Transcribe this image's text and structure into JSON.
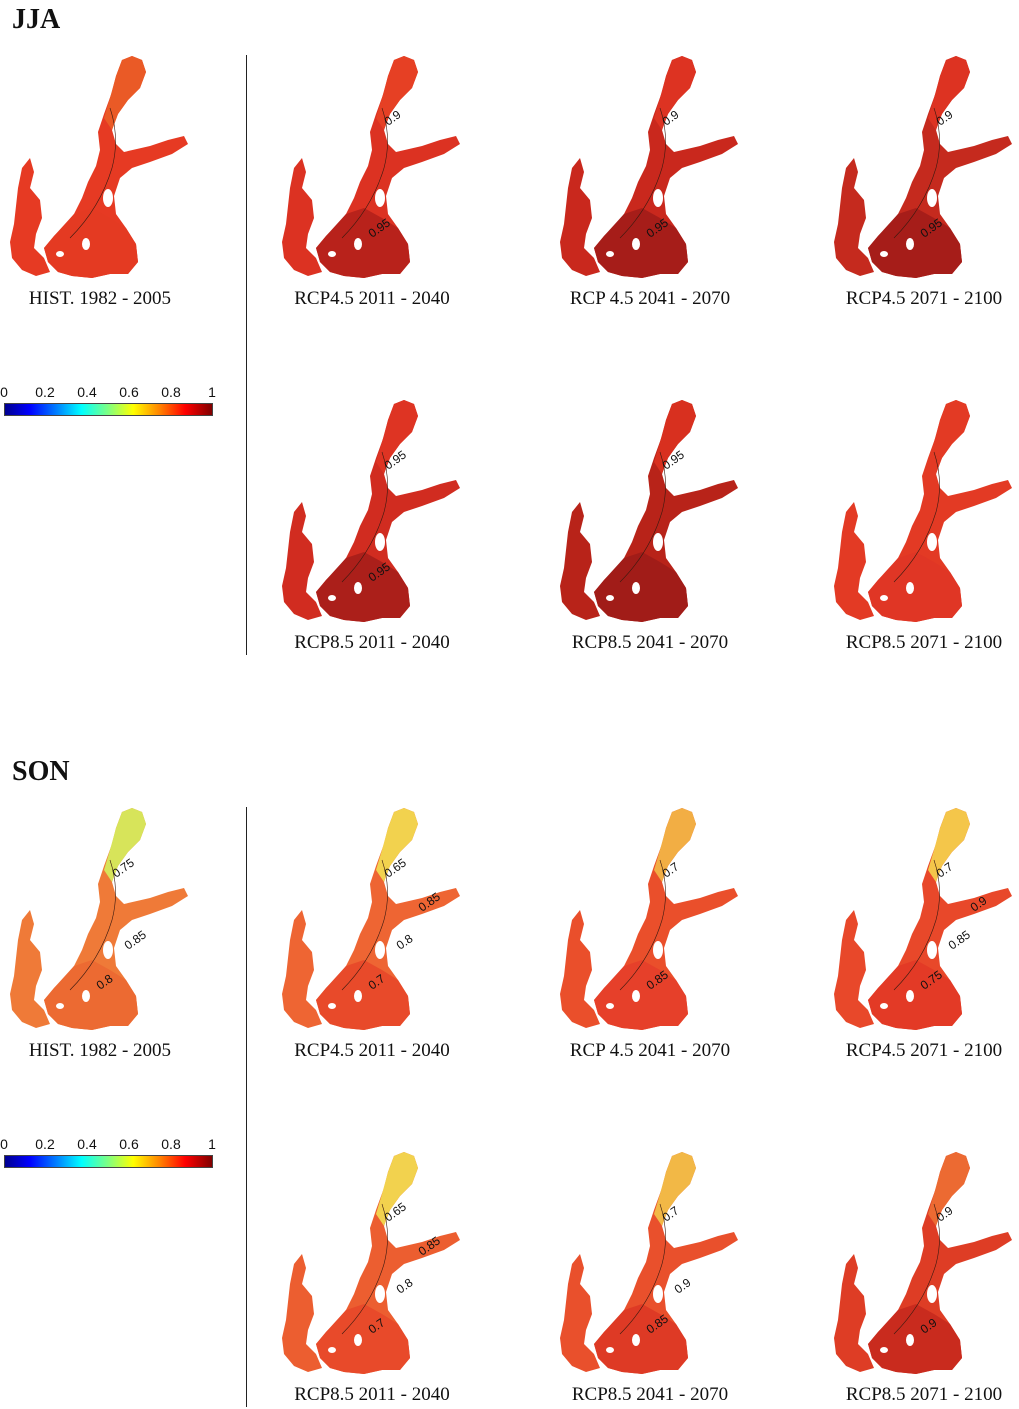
{
  "seasons": [
    {
      "id": "jja",
      "title": "JJA",
      "colorbar": {
        "ticks": [
          "0",
          "0.2",
          "0.4",
          "0.6",
          "0.8",
          "1"
        ]
      },
      "panels": [
        {
          "caption": "HIST. 1982 - 2005",
          "main": "#e63a23",
          "north": "#ea5a26",
          "south": "#e43a22",
          "labels": []
        },
        {
          "caption": "RCP4.5 2011 - 2040",
          "main": "#dc3222",
          "north": "#e64024",
          "south": "#b8221b",
          "labels": [
            "0.9",
            "0.95"
          ]
        },
        {
          "caption": "RCP 4.5 2041 - 2070",
          "main": "#c9281d",
          "north": "#dd3322",
          "south": "#a61d19",
          "labels": [
            "0.9",
            "0.95"
          ]
        },
        {
          "caption": "RCP4.5 2071 - 2100",
          "main": "#c52a1e",
          "north": "#dd3322",
          "south": "#a61d19",
          "labels": [
            "0.9",
            "0.95"
          ]
        },
        {
          "caption": "RCP8.5 2011 - 2040",
          "main": "#d12c20",
          "north": "#de3423",
          "south": "#ab1f1a",
          "labels": [
            "0.95",
            "0.95"
          ]
        },
        {
          "caption": "RCP8.5 2041 - 2070",
          "main": "#b82319",
          "north": "#d8301f",
          "south": "#a11c18",
          "labels": [
            "0.95"
          ]
        },
        {
          "caption": "RCP8.5 2071 - 2100",
          "main": "#e33a24",
          "north": "#e33a24",
          "south": "#e03625",
          "labels": []
        }
      ]
    },
    {
      "id": "son",
      "title": "SON",
      "colorbar": {
        "ticks": [
          "0",
          "0.2",
          "0.4",
          "0.6",
          "0.8",
          "1"
        ]
      },
      "panels": [
        {
          "caption": "HIST. 1982 - 2005",
          "main": "#ef7a38",
          "north": "#d7e45a",
          "south": "#ec6a32",
          "labels": [
            "0.75",
            "0.8",
            "0.85"
          ]
        },
        {
          "caption": "RCP4.5 2011 - 2040",
          "main": "#ee6533",
          "north": "#f2d24e",
          "south": "#e84a2a",
          "labels": [
            "0.65",
            "0.7",
            "0.8",
            "0.85"
          ]
        },
        {
          "caption": "RCP 4.5 2041 - 2070",
          "main": "#ea4f2b",
          "north": "#f2ae44",
          "south": "#e6402a",
          "labels": [
            "0.7",
            "0.85"
          ]
        },
        {
          "caption": "RCP4.5 2071 - 2100",
          "main": "#e8482a",
          "north": "#f4c64a",
          "south": "#e33a26",
          "labels": [
            "0.7",
            "0.75",
            "0.85",
            "0.9"
          ]
        },
        {
          "caption": "RCP8.5 2011 - 2040",
          "main": "#ec5e30",
          "north": "#f2d24e",
          "south": "#e84a2a",
          "labels": [
            "0.65",
            "0.7",
            "0.8",
            "0.85"
          ]
        },
        {
          "caption": "RCP8.5 2041 - 2070",
          "main": "#e9502c",
          "north": "#f2b846",
          "south": "#de3a25",
          "labels": [
            "0.7",
            "0.85",
            "0.9"
          ]
        },
        {
          "caption": "RCP8.5 2071 - 2100",
          "main": "#de3d25",
          "north": "#ec6a32",
          "south": "#c92b1e",
          "labels": [
            "0.9",
            "0.9"
          ]
        }
      ]
    }
  ]
}
